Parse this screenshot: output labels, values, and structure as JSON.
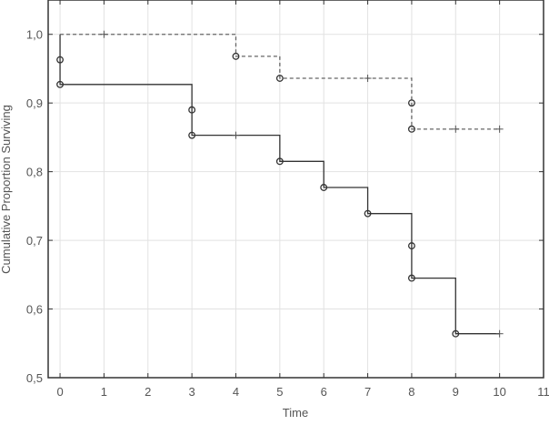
{
  "chart_data": {
    "type": "line",
    "title": "",
    "xlabel": "Time",
    "ylabel": "Cumulative Proportion Surviving",
    "xlim": [
      -0.27,
      11
    ],
    "ylim": [
      0.5,
      1.05
    ],
    "grid": true,
    "x_ticks": [
      0,
      1,
      2,
      3,
      4,
      5,
      6,
      7,
      8,
      9,
      10,
      11
    ],
    "x_tick_labels": [
      "0",
      "1",
      "2",
      "3",
      "4",
      "5",
      "6",
      "7",
      "8",
      "9",
      "10",
      "11"
    ],
    "y_ticks": [
      0.5,
      0.6,
      0.7,
      0.8,
      0.9,
      1.0
    ],
    "y_tick_labels": [
      "0,5",
      "0,6",
      "0,7",
      "0,8",
      "0,9",
      "1,0"
    ],
    "series": [
      {
        "style": "solid",
        "color": "#333333",
        "steps": [
          [
            0,
            1.0
          ],
          [
            0,
            0.927
          ],
          [
            3,
            0.853
          ],
          [
            5,
            0.815
          ],
          [
            6,
            0.777
          ],
          [
            7,
            0.739
          ],
          [
            8,
            0.645
          ],
          [
            9,
            0.564
          ],
          [
            10,
            0.564
          ]
        ],
        "events": [
          [
            0,
            0.963
          ],
          [
            0,
            0.927
          ],
          [
            3,
            0.89
          ],
          [
            3,
            0.853
          ],
          [
            5,
            0.815
          ],
          [
            6,
            0.777
          ],
          [
            7,
            0.739
          ],
          [
            8,
            0.692
          ],
          [
            8,
            0.645
          ],
          [
            9,
            0.564
          ]
        ],
        "censored": [
          [
            4,
            0.853
          ],
          [
            10,
            0.564
          ]
        ]
      },
      {
        "style": "dashed",
        "color": "#666666",
        "steps": [
          [
            0,
            1.0
          ],
          [
            4,
            0.968
          ],
          [
            5,
            0.936
          ],
          [
            8,
            0.862
          ],
          [
            10,
            0.862
          ]
        ],
        "events": [
          [
            4,
            0.968
          ],
          [
            5,
            0.936
          ],
          [
            8,
            0.9
          ],
          [
            8,
            0.862
          ]
        ],
        "censored": [
          [
            1,
            1.0
          ],
          [
            7,
            0.936
          ],
          [
            9,
            0.862
          ],
          [
            10,
            0.862
          ]
        ]
      }
    ]
  }
}
